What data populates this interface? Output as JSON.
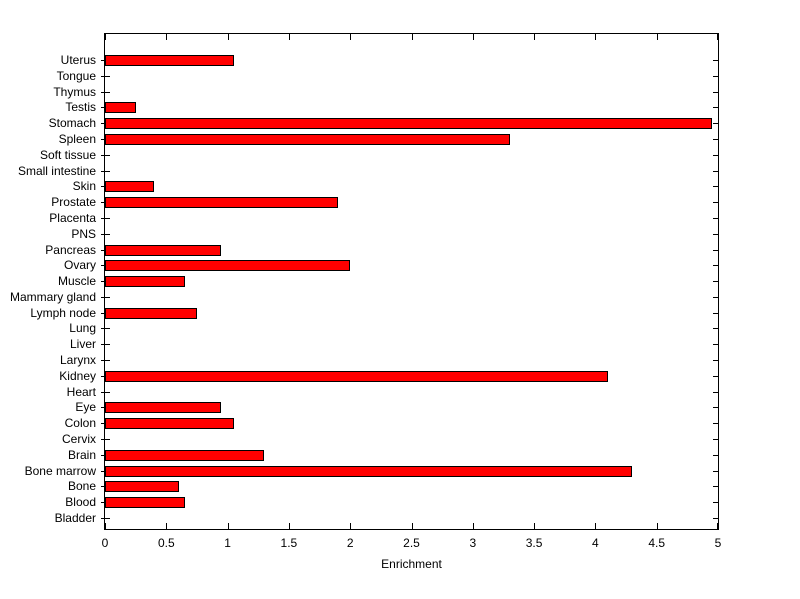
{
  "chart_data": {
    "type": "bar",
    "orientation": "horizontal",
    "title": "",
    "xlabel": "Enrichment",
    "ylabel": "",
    "xlim": [
      0,
      5
    ],
    "xticks": [
      "0",
      "0.5",
      "1",
      "1.5",
      "2",
      "2.5",
      "3",
      "3.5",
      "4",
      "4.5",
      "5"
    ],
    "grid": false,
    "legend": false,
    "bar_color": "#ff0000",
    "bar_edge_color": "#000000",
    "axis_color": "#000000",
    "background_color": "#ffffff",
    "category_order": "top-to-bottom",
    "categories": [
      "Uterus",
      "Tongue",
      "Thymus",
      "Testis",
      "Stomach",
      "Spleen",
      "Soft tissue",
      "Small intestine",
      "Skin",
      "Prostate",
      "Placenta",
      "PNS",
      "Pancreas",
      "Ovary",
      "Muscle",
      "Mammary gland",
      "Lymph node",
      "Lung",
      "Liver",
      "Larynx",
      "Kidney",
      "Heart",
      "Eye",
      "Colon",
      "Cervix",
      "Brain",
      "Bone marrow",
      "Bone",
      "Blood",
      "Bladder"
    ],
    "values": [
      1.05,
      0,
      0,
      0.25,
      4.95,
      3.3,
      0,
      0,
      0.4,
      1.9,
      0,
      0,
      0.95,
      2.0,
      0.65,
      0,
      0.75,
      0,
      0,
      0,
      4.1,
      0,
      0.95,
      1.05,
      0,
      1.3,
      4.3,
      0.6,
      0.65,
      0
    ]
  }
}
